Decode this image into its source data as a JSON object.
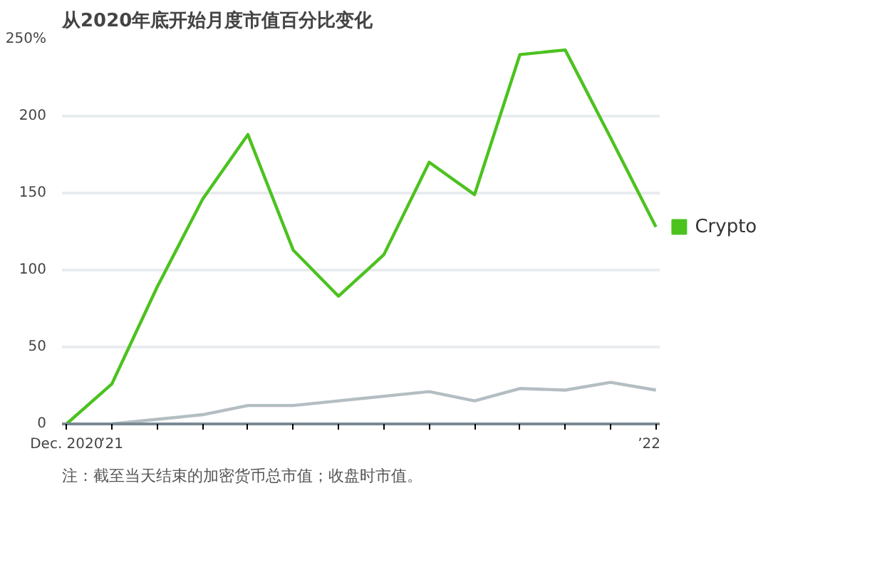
{
  "chart_data": {
    "type": "line",
    "title": "从2020年底开始月度市值百分比变化",
    "categories": [
      "Dec. 2020",
      "’21",
      null,
      null,
      null,
      null,
      null,
      null,
      null,
      null,
      null,
      null,
      null,
      "’22"
    ],
    "series": [
      {
        "name": "Crypto",
        "color": "#4cc21f",
        "values": [
          0,
          26,
          89,
          146,
          188,
          113,
          83,
          110,
          170,
          149,
          240,
          243,
          186,
          128
        ]
      },
      {
        "color": "#b4bec2",
        "values": [
          null,
          0,
          3,
          6,
          12,
          12,
          15,
          18,
          21,
          15,
          23,
          22,
          27,
          22
        ]
      }
    ],
    "ylim": [
      0,
      250
    ],
    "yticks": [
      0,
      50,
      100,
      150,
      200,
      {
        "value": 250,
        "label": "250%"
      }
    ],
    "grid": "y",
    "legend": "right",
    "marker": "none",
    "line_style": "solid",
    "annotations": [
      "注：截至当天结束的加密货币总市值；收盘时市值。"
    ]
  }
}
